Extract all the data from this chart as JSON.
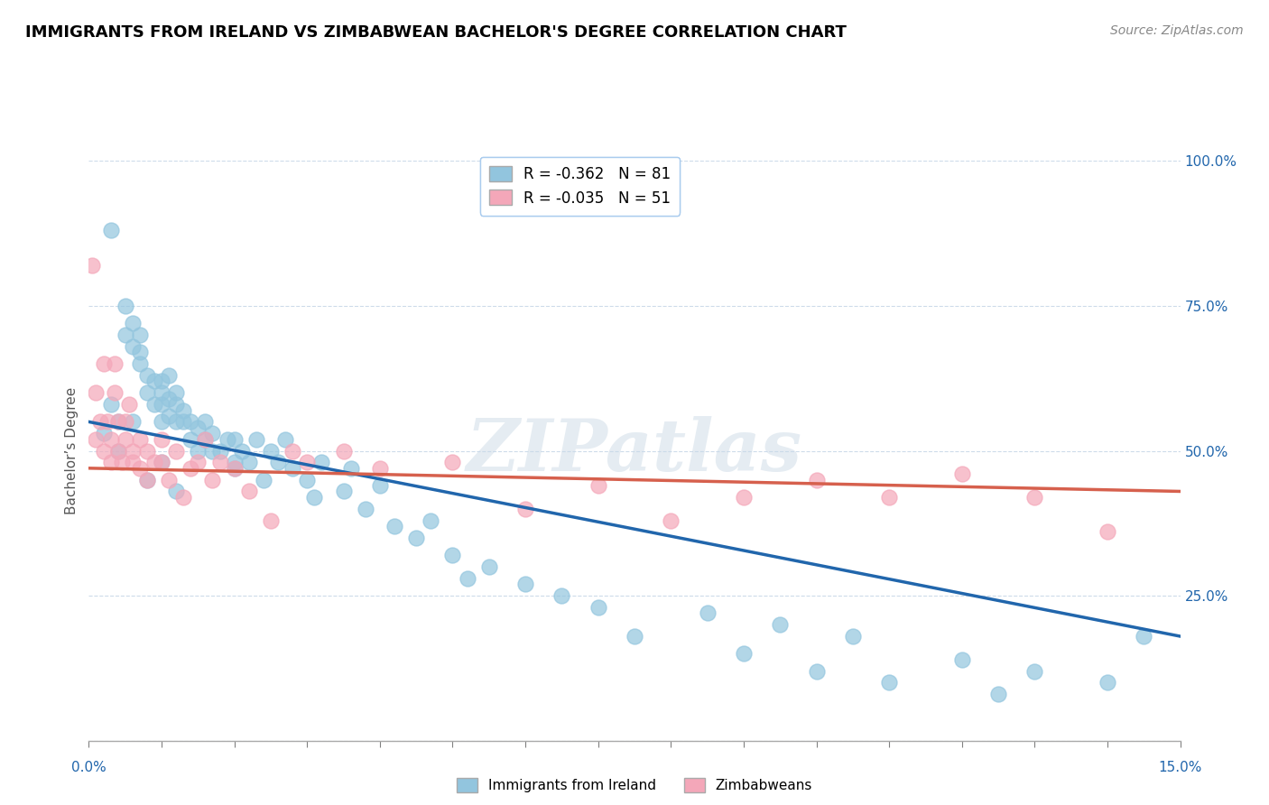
{
  "title": "IMMIGRANTS FROM IRELAND VS ZIMBABWEAN BACHELOR'S DEGREE CORRELATION CHART",
  "source": "Source: ZipAtlas.com",
  "ylabel": "Bachelor’s Degree",
  "legend_entry1": "R = -0.362   N = 81",
  "legend_entry2": "R = -0.035   N = 51",
  "legend_label1": "Immigrants from Ireland",
  "legend_label2": "Zimbabweans",
  "watermark": "ZIPatlas",
  "blue_color": "#92c5de",
  "pink_color": "#f4a7b9",
  "blue_line_color": "#2166ac",
  "pink_line_color": "#d6604d",
  "xlim": [
    0.0,
    15.0
  ],
  "ylim": [
    0.0,
    100.0
  ],
  "blue_x": [
    0.3,
    0.4,
    0.5,
    0.5,
    0.6,
    0.6,
    0.7,
    0.7,
    0.7,
    0.8,
    0.8,
    0.9,
    0.9,
    1.0,
    1.0,
    1.0,
    1.0,
    1.1,
    1.1,
    1.1,
    1.2,
    1.2,
    1.2,
    1.3,
    1.3,
    1.4,
    1.4,
    1.5,
    1.5,
    1.6,
    1.6,
    1.7,
    1.7,
    1.8,
    1.9,
    2.0,
    2.0,
    2.1,
    2.2,
    2.3,
    2.4,
    2.5,
    2.6,
    2.7,
    2.8,
    3.0,
    3.1,
    3.2,
    3.5,
    3.6,
    3.8,
    4.0,
    4.2,
    4.5,
    4.7,
    5.0,
    5.2,
    5.5,
    6.0,
    6.5,
    7.0,
    7.5,
    8.5,
    9.0,
    9.5,
    10.0,
    10.5,
    11.0,
    12.0,
    12.5,
    13.0,
    14.0,
    14.5,
    0.2,
    0.3,
    0.4,
    0.6,
    0.8,
    1.0,
    1.2,
    2.0
  ],
  "blue_y": [
    88,
    55,
    70,
    75,
    68,
    72,
    65,
    67,
    70,
    60,
    63,
    58,
    62,
    55,
    58,
    60,
    62,
    56,
    59,
    63,
    55,
    58,
    60,
    55,
    57,
    52,
    55,
    50,
    54,
    52,
    55,
    50,
    53,
    50,
    52,
    48,
    52,
    50,
    48,
    52,
    45,
    50,
    48,
    52,
    47,
    45,
    42,
    48,
    43,
    47,
    40,
    44,
    37,
    35,
    38,
    32,
    28,
    30,
    27,
    25,
    23,
    18,
    22,
    15,
    20,
    12,
    18,
    10,
    14,
    8,
    12,
    10,
    18,
    53,
    58,
    50,
    55,
    45,
    48,
    43,
    47
  ],
  "pink_x": [
    0.05,
    0.1,
    0.1,
    0.15,
    0.2,
    0.2,
    0.25,
    0.3,
    0.3,
    0.35,
    0.35,
    0.4,
    0.4,
    0.45,
    0.5,
    0.5,
    0.55,
    0.6,
    0.6,
    0.7,
    0.7,
    0.8,
    0.8,
    0.9,
    1.0,
    1.0,
    1.1,
    1.2,
    1.3,
    1.4,
    1.5,
    1.6,
    1.7,
    1.8,
    2.0,
    2.2,
    2.5,
    2.8,
    3.0,
    3.5,
    4.0,
    5.0,
    6.0,
    7.0,
    8.0,
    9.0,
    10.0,
    11.0,
    12.0,
    13.0,
    14.0
  ],
  "pink_y": [
    82,
    60,
    52,
    55,
    65,
    50,
    55,
    48,
    52,
    60,
    65,
    55,
    50,
    48,
    55,
    52,
    58,
    50,
    48,
    52,
    47,
    50,
    45,
    48,
    52,
    48,
    45,
    50,
    42,
    47,
    48,
    52,
    45,
    48,
    47,
    43,
    38,
    50,
    48,
    50,
    47,
    48,
    40,
    44,
    38,
    42,
    45,
    42,
    46,
    42,
    36
  ],
  "blue_trend_x0": 0.0,
  "blue_trend_y0": 55.0,
  "blue_trend_x1": 15.0,
  "blue_trend_y1": 18.0,
  "pink_trend_x0": 0.0,
  "pink_trend_y0": 47.0,
  "pink_trend_x1": 15.0,
  "pink_trend_y1": 43.0
}
